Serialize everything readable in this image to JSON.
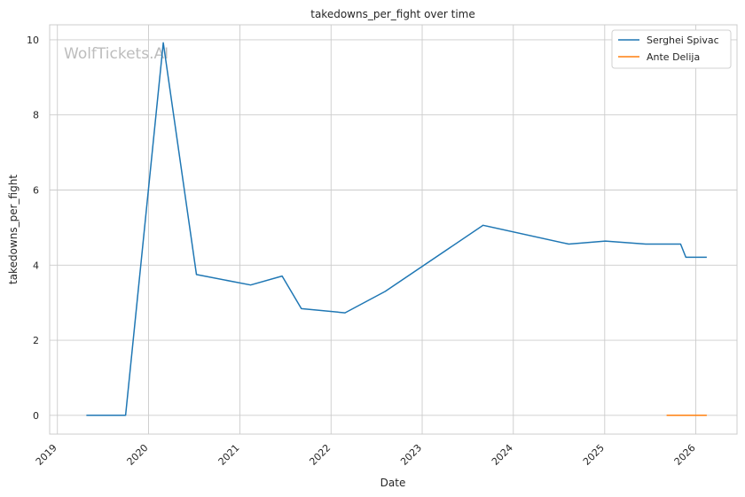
{
  "chart_data": {
    "type": "line",
    "title": "takedowns_per_fight over time",
    "xlabel": "Date",
    "ylabel": "takedowns_per_fight",
    "watermark": "WolfTickets.AI",
    "x_ticks": [
      "2019",
      "2020",
      "2021",
      "2022",
      "2023",
      "2024",
      "2025",
      "2026"
    ],
    "y_ticks": [
      0,
      2,
      4,
      6,
      8,
      10
    ],
    "xlim": [
      "2018-12-01",
      "2026-06-15"
    ],
    "ylim": [
      -0.5,
      10.4
    ],
    "grid": true,
    "legend_position": "top-right",
    "series": [
      {
        "name": "Serghei Spivac",
        "color": "#1f77b4",
        "points": [
          {
            "x": "2019-04-27",
            "y": 0
          },
          {
            "x": "2019-10-01",
            "y": 0
          },
          {
            "x": "2020-02-29",
            "y": 9.92
          },
          {
            "x": "2020-07-11",
            "y": 3.75
          },
          {
            "x": "2021-02-13",
            "y": 3.47
          },
          {
            "x": "2021-06-19",
            "y": 3.71
          },
          {
            "x": "2021-09-04",
            "y": 2.84
          },
          {
            "x": "2022-02-26",
            "y": 2.73
          },
          {
            "x": "2022-08-06",
            "y": 3.3
          },
          {
            "x": "2023-09-02",
            "y": 5.06
          },
          {
            "x": "2024-08-10",
            "y": 4.56
          },
          {
            "x": "2025-01-04",
            "y": 4.64
          },
          {
            "x": "2025-06-14",
            "y": 4.56
          },
          {
            "x": "2025-11-01",
            "y": 4.56
          },
          {
            "x": "2025-11-22",
            "y": 4.21
          },
          {
            "x": "2026-02-14",
            "y": 4.21
          }
        ]
      },
      {
        "name": "Ante Delija",
        "color": "#ff7f0e",
        "points": [
          {
            "x": "2025-09-06",
            "y": 0
          },
          {
            "x": "2026-02-14",
            "y": 0
          }
        ]
      }
    ]
  }
}
